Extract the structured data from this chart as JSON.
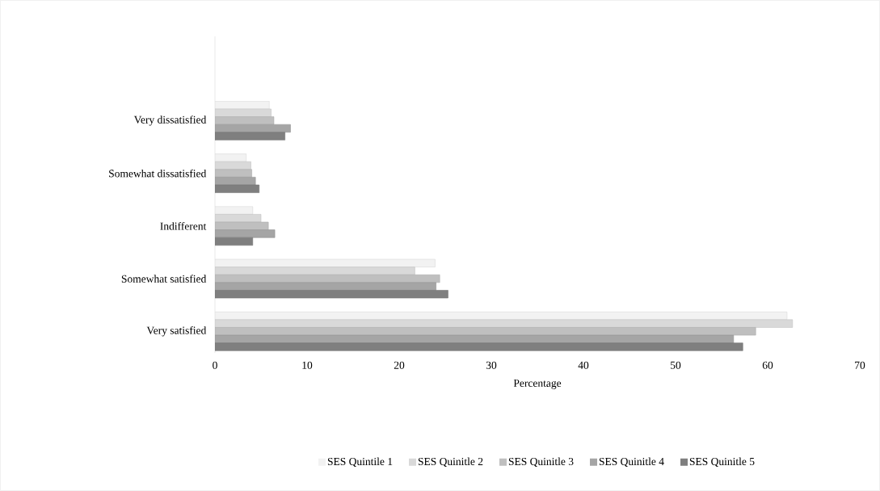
{
  "chart_data": {
    "type": "bar",
    "orientation": "horizontal",
    "xlabel": "Percentage",
    "categories": [
      "Very dissatisfied",
      "Somewhat dissatisfied",
      "Indifferent",
      "Somewhat satisfied",
      "Very satisfied"
    ],
    "series": [
      {
        "name": "SES Quintile 1",
        "color": "#f2f2f2",
        "values": [
          5.9,
          3.4,
          4.1,
          23.9,
          62.1
        ]
      },
      {
        "name": "SES Quinitle 2",
        "color": "#d9d9d9",
        "values": [
          6.1,
          3.9,
          5.0,
          21.7,
          62.7
        ]
      },
      {
        "name": "SES Quinitle 3",
        "color": "#bfbfbf",
        "values": [
          6.4,
          4.0,
          5.8,
          24.4,
          58.7
        ]
      },
      {
        "name": "SES Quinitle 4",
        "color": "#a5a5a5",
        "values": [
          8.2,
          4.4,
          6.5,
          24.0,
          56.3
        ]
      },
      {
        "name": "SES Quinitle 5",
        "color": "#7f7f7f",
        "values": [
          7.6,
          4.8,
          4.1,
          25.3,
          57.3
        ]
      }
    ],
    "xlim": [
      0,
      70
    ],
    "xticks": [
      0,
      10,
      20,
      30,
      40,
      50,
      60,
      70
    ],
    "legend": "bottom"
  }
}
